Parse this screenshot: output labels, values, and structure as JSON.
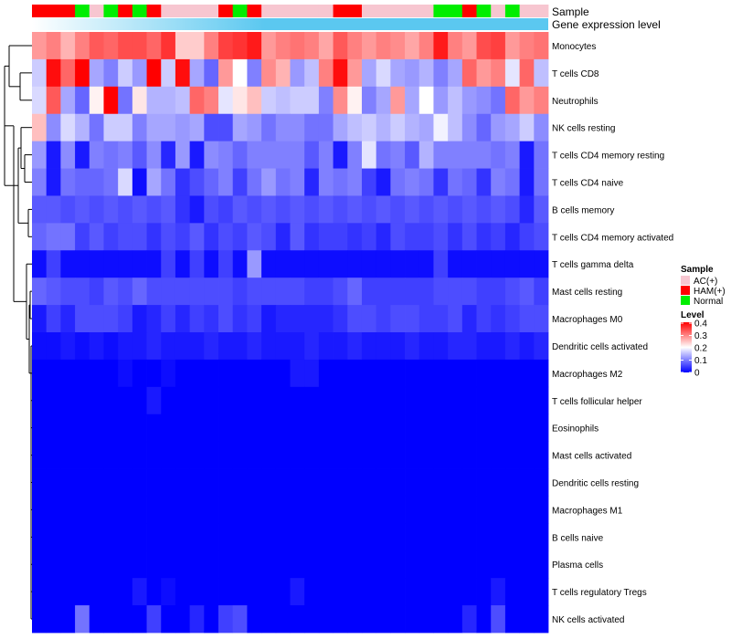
{
  "chart_data": {
    "type": "heatmap",
    "title": "",
    "annotation_labels": {
      "sample": "Sample",
      "gene_expression": "Gene expression level"
    },
    "legend_sample": {
      "title": "Sample",
      "entries": [
        {
          "label": "AC(+)",
          "color": "#f7c6d0"
        },
        {
          "label": "HAM(+)",
          "color": "#ff0000"
        },
        {
          "label": "Normal",
          "color": "#00ee00"
        }
      ]
    },
    "legend_level": {
      "title": "Level",
      "ticks": [
        "0.4",
        "0.3",
        "0.2",
        "0.1",
        "0"
      ],
      "min": 0,
      "max": 0.4,
      "colors": {
        "low": "#0000ff",
        "mid": "#ffffff",
        "high": "#ff0000"
      }
    },
    "sample_groups": [
      "HAM(+)",
      "HAM(+)",
      "HAM(+)",
      "Normal",
      "AC(+)",
      "Normal",
      "HAM(+)",
      "Normal",
      "HAM(+)",
      "AC(+)",
      "AC(+)",
      "AC(+)",
      "AC(+)",
      "HAM(+)",
      "Normal",
      "HAM(+)",
      "AC(+)",
      "AC(+)",
      "AC(+)",
      "AC(+)",
      "AC(+)",
      "HAM(+)",
      "HAM(+)",
      "AC(+)",
      "AC(+)",
      "AC(+)",
      "AC(+)",
      "AC(+)",
      "Normal",
      "Normal",
      "HAM(+)",
      "Normal",
      "AC(+)",
      "Normal",
      "AC(+)",
      "AC(+)"
    ],
    "gene_expression_color": "#5bc8f0",
    "row_labels": [
      "Monocytes",
      "T cells CD8",
      "Neutrophils",
      "NK cells resting",
      "T cells CD4 memory resting",
      "T cells CD4 naive",
      "B cells memory",
      "T cells CD4 memory activated",
      "T cells gamma delta",
      "Mast cells resting",
      "Macrophages M0",
      "Dendritic cells activated",
      "Macrophages M2",
      "T cells follicular helper",
      "Eosinophils",
      "Mast cells activated",
      "Dendritic cells resting",
      "Macrophages M1",
      "B cells naive",
      "Plasma cells",
      "T cells regulatory  Tregs",
      "NK cells activated"
    ],
    "values": [
      [
        0.28,
        0.3,
        0.26,
        0.3,
        0.33,
        0.32,
        0.34,
        0.34,
        0.32,
        0.36,
        0.24,
        0.24,
        0.3,
        0.35,
        0.36,
        0.38,
        0.28,
        0.3,
        0.31,
        0.3,
        0.27,
        0.33,
        0.3,
        0.28,
        0.3,
        0.29,
        0.27,
        0.3,
        0.38,
        0.3,
        0.28,
        0.34,
        0.35,
        0.28,
        0.3,
        0.31
      ],
      [
        0.16,
        0.39,
        0.32,
        0.4,
        0.13,
        0.1,
        0.16,
        0.12,
        0.4,
        0.16,
        0.39,
        0.13,
        0.08,
        0.28,
        0.2,
        0.1,
        0.29,
        0.26,
        0.12,
        0.15,
        0.3,
        0.39,
        0.28,
        0.13,
        0.17,
        0.13,
        0.12,
        0.14,
        0.1,
        0.13,
        0.32,
        0.28,
        0.3,
        0.18,
        0.32,
        0.15
      ],
      [
        0.17,
        0.33,
        0.13,
        0.08,
        0.21,
        0.4,
        0.09,
        0.22,
        0.14,
        0.14,
        0.15,
        0.32,
        0.3,
        0.18,
        0.22,
        0.25,
        0.16,
        0.15,
        0.16,
        0.16,
        0.1,
        0.29,
        0.21,
        0.1,
        0.13,
        0.28,
        0.13,
        0.2,
        0.12,
        0.15,
        0.12,
        0.11,
        0.09,
        0.32,
        0.28,
        0.3
      ],
      [
        0.25,
        0.11,
        0.17,
        0.14,
        0.09,
        0.16,
        0.16,
        0.1,
        0.13,
        0.13,
        0.12,
        0.13,
        0.06,
        0.06,
        0.13,
        0.12,
        0.09,
        0.11,
        0.11,
        0.09,
        0.09,
        0.13,
        0.15,
        0.16,
        0.14,
        0.16,
        0.14,
        0.13,
        0.19,
        0.15,
        0.11,
        0.08,
        0.12,
        0.13,
        0.16,
        0.11
      ],
      [
        0.12,
        0.02,
        0.11,
        0.02,
        0.1,
        0.09,
        0.1,
        0.07,
        0.11,
        0.03,
        0.12,
        0.02,
        0.11,
        0.1,
        0.08,
        0.1,
        0.1,
        0.1,
        0.1,
        0.07,
        0.1,
        0.02,
        0.1,
        0.18,
        0.09,
        0.1,
        0.07,
        0.14,
        0.1,
        0.1,
        0.1,
        0.1,
        0.09,
        0.1,
        0.02,
        0.09
      ],
      [
        0.1,
        0.02,
        0.09,
        0.08,
        0.08,
        0.09,
        0.17,
        0.01,
        0.13,
        0.09,
        0.04,
        0.06,
        0.08,
        0.1,
        0.05,
        0.09,
        0.12,
        0.09,
        0.1,
        0.03,
        0.1,
        0.09,
        0.1,
        0.05,
        0.02,
        0.09,
        0.1,
        0.09,
        0.04,
        0.09,
        0.08,
        0.04,
        0.1,
        0.09,
        0.02,
        0.09
      ],
      [
        0.07,
        0.07,
        0.06,
        0.07,
        0.06,
        0.07,
        0.06,
        0.07,
        0.06,
        0.07,
        0.04,
        0.02,
        0.06,
        0.05,
        0.07,
        0.06,
        0.07,
        0.06,
        0.07,
        0.06,
        0.07,
        0.06,
        0.07,
        0.06,
        0.07,
        0.06,
        0.07,
        0.06,
        0.07,
        0.06,
        0.07,
        0.06,
        0.07,
        0.06,
        0.03,
        0.07
      ],
      [
        0.08,
        0.09,
        0.09,
        0.05,
        0.07,
        0.05,
        0.06,
        0.06,
        0.04,
        0.06,
        0.05,
        0.07,
        0.04,
        0.06,
        0.05,
        0.07,
        0.06,
        0.03,
        0.07,
        0.04,
        0.05,
        0.05,
        0.04,
        0.05,
        0.03,
        0.06,
        0.05,
        0.05,
        0.06,
        0.04,
        0.06,
        0.04,
        0.05,
        0.03,
        0.05,
        0.06
      ],
      [
        0.01,
        0.05,
        0.01,
        0.01,
        0.01,
        0.01,
        0.01,
        0.01,
        0.01,
        0.05,
        0.01,
        0.05,
        0.01,
        0.05,
        0.01,
        0.12,
        0.01,
        0.01,
        0.01,
        0.01,
        0.01,
        0.01,
        0.01,
        0.01,
        0.01,
        0.01,
        0.01,
        0.01,
        0.05,
        0.01,
        0.01,
        0.01,
        0.01,
        0.01,
        0.01,
        0.01
      ],
      [
        0.08,
        0.07,
        0.06,
        0.06,
        0.05,
        0.07,
        0.06,
        0.08,
        0.06,
        0.06,
        0.06,
        0.06,
        0.06,
        0.06,
        0.05,
        0.06,
        0.06,
        0.06,
        0.06,
        0.05,
        0.05,
        0.06,
        0.08,
        0.05,
        0.05,
        0.05,
        0.05,
        0.05,
        0.06,
        0.06,
        0.06,
        0.05,
        0.05,
        0.06,
        0.07,
        0.05
      ],
      [
        0.02,
        0.05,
        0.03,
        0.06,
        0.06,
        0.06,
        0.05,
        0.02,
        0.03,
        0.05,
        0.03,
        0.05,
        0.04,
        0.06,
        0.04,
        0.05,
        0.02,
        0.03,
        0.03,
        0.03,
        0.03,
        0.04,
        0.06,
        0.06,
        0.05,
        0.06,
        0.06,
        0.05,
        0.05,
        0.06,
        0.03,
        0.05,
        0.04,
        0.05,
        0.06,
        0.06
      ],
      [
        0.01,
        0.01,
        0.02,
        0.01,
        0.02,
        0.01,
        0.02,
        0.02,
        0.03,
        0.02,
        0.02,
        0.02,
        0.03,
        0.02,
        0.02,
        0.03,
        0.02,
        0.02,
        0.02,
        0.03,
        0.02,
        0.02,
        0.03,
        0.02,
        0.02,
        0.02,
        0.03,
        0.02,
        0.02,
        0.03,
        0.03,
        0.02,
        0.02,
        0.03,
        0.02,
        0.03
      ],
      [
        0.0,
        0.0,
        0.0,
        0.0,
        0.0,
        0.0,
        0.01,
        0.0,
        0.0,
        0.01,
        0.0,
        0.0,
        0.0,
        0.0,
        0.0,
        0.0,
        0.0,
        0.0,
        0.02,
        0.02,
        0.0,
        0.0,
        0.0,
        0.0,
        0.0,
        0.0,
        0.0,
        0.0,
        0.0,
        0.0,
        0.0,
        0.0,
        0.0,
        0.0,
        0.0,
        0.0
      ],
      [
        0.0,
        0.0,
        0.0,
        0.0,
        0.0,
        0.0,
        0.0,
        0.0,
        0.02,
        0.0,
        0.0,
        0.0,
        0.0,
        0.0,
        0.0,
        0.0,
        0.0,
        0.0,
        0.0,
        0.0,
        0.0,
        0.0,
        0.0,
        0.0,
        0.0,
        0.0,
        0.0,
        0.0,
        0.0,
        0.0,
        0.0,
        0.0,
        0.0,
        0.0,
        0.0,
        0.0
      ],
      [
        0.0,
        0.0,
        0.0,
        0.0,
        0.0,
        0.0,
        0.0,
        0.0,
        0.0,
        0.0,
        0.0,
        0.0,
        0.0,
        0.0,
        0.0,
        0.0,
        0.0,
        0.0,
        0.0,
        0.0,
        0.0,
        0.0,
        0.0,
        0.0,
        0.0,
        0.0,
        0.0,
        0.0,
        0.0,
        0.0,
        0.0,
        0.0,
        0.0,
        0.0,
        0.0,
        0.0
      ],
      [
        0.0,
        0.0,
        0.0,
        0.0,
        0.0,
        0.0,
        0.0,
        0.0,
        0.0,
        0.0,
        0.0,
        0.0,
        0.0,
        0.0,
        0.0,
        0.0,
        0.0,
        0.0,
        0.0,
        0.0,
        0.0,
        0.0,
        0.0,
        0.0,
        0.0,
        0.0,
        0.0,
        0.0,
        0.0,
        0.0,
        0.0,
        0.0,
        0.0,
        0.0,
        0.0,
        0.0
      ],
      [
        0.0,
        0.0,
        0.0,
        0.0,
        0.0,
        0.0,
        0.0,
        0.0,
        0.0,
        0.0,
        0.0,
        0.0,
        0.0,
        0.0,
        0.0,
        0.0,
        0.0,
        0.0,
        0.0,
        0.0,
        0.0,
        0.0,
        0.0,
        0.0,
        0.0,
        0.0,
        0.0,
        0.0,
        0.0,
        0.0,
        0.0,
        0.0,
        0.0,
        0.0,
        0.0,
        0.0
      ],
      [
        0.0,
        0.0,
        0.0,
        0.0,
        0.0,
        0.0,
        0.0,
        0.0,
        0.0,
        0.0,
        0.0,
        0.0,
        0.0,
        0.0,
        0.0,
        0.0,
        0.0,
        0.0,
        0.0,
        0.0,
        0.0,
        0.0,
        0.0,
        0.0,
        0.0,
        0.0,
        0.0,
        0.0,
        0.0,
        0.0,
        0.0,
        0.0,
        0.0,
        0.0,
        0.0,
        0.0
      ],
      [
        0.0,
        0.0,
        0.0,
        0.0,
        0.0,
        0.0,
        0.0,
        0.0,
        0.0,
        0.0,
        0.0,
        0.0,
        0.0,
        0.0,
        0.0,
        0.0,
        0.0,
        0.0,
        0.0,
        0.0,
        0.0,
        0.0,
        0.0,
        0.0,
        0.0,
        0.0,
        0.0,
        0.0,
        0.0,
        0.0,
        0.0,
        0.0,
        0.0,
        0.0,
        0.0,
        0.0
      ],
      [
        0.0,
        0.0,
        0.0,
        0.0,
        0.0,
        0.0,
        0.0,
        0.0,
        0.0,
        0.0,
        0.0,
        0.0,
        0.0,
        0.0,
        0.0,
        0.0,
        0.0,
        0.0,
        0.0,
        0.0,
        0.0,
        0.0,
        0.0,
        0.0,
        0.0,
        0.0,
        0.0,
        0.0,
        0.0,
        0.0,
        0.0,
        0.0,
        0.0,
        0.0,
        0.0,
        0.0
      ],
      [
        0.0,
        0.0,
        0.0,
        0.0,
        0.0,
        0.0,
        0.0,
        0.02,
        0.0,
        0.01,
        0.0,
        0.0,
        0.0,
        0.0,
        0.0,
        0.0,
        0.0,
        0.0,
        0.02,
        0.0,
        0.0,
        0.0,
        0.0,
        0.0,
        0.0,
        0.0,
        0.0,
        0.0,
        0.0,
        0.0,
        0.0,
        0.0,
        0.02,
        0.0,
        0.0,
        0.0
      ],
      [
        0.0,
        0.0,
        0.0,
        0.09,
        0.0,
        0.0,
        0.0,
        0.0,
        0.05,
        0.0,
        0.0,
        0.03,
        0.0,
        0.05,
        0.06,
        0.0,
        0.0,
        0.0,
        0.0,
        0.0,
        0.0,
        0.0,
        0.0,
        0.0,
        0.0,
        0.0,
        0.0,
        0.0,
        0.0,
        0.0,
        0.03,
        0.0,
        0.06,
        0.0,
        0.0,
        0.0
      ]
    ]
  }
}
